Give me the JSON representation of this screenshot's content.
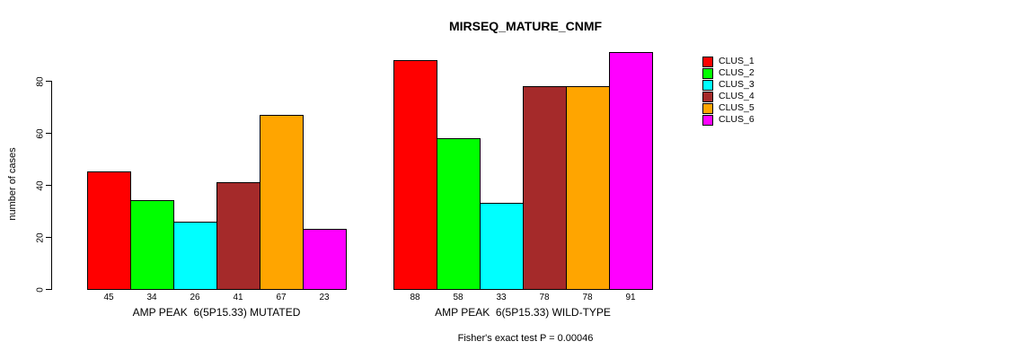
{
  "title": "MIRSEQ_MATURE_CNMF",
  "footer": "Fisher's exact test P = 0.00046",
  "chart_data": {
    "type": "bar",
    "title": "MIRSEQ_MATURE_CNMF",
    "ylabel": "number of cases",
    "xlabel": "",
    "ylim": [
      0,
      93
    ],
    "yticks": [
      0,
      20,
      40,
      60,
      80
    ],
    "grid": false,
    "legend_position": "right",
    "series_labels": [
      "CLUS_1",
      "CLUS_2",
      "CLUS_3",
      "CLUS_4",
      "CLUS_5",
      "CLUS_6"
    ],
    "colors": [
      "#FF0000",
      "#00FF00",
      "#00FFFF",
      "#A52A2A",
      "#FFA500",
      "#FF00FF"
    ],
    "groups": [
      {
        "label": "AMP PEAK  6(5P15.33) MUTATED",
        "values": [
          45,
          34,
          26,
          41,
          67,
          23
        ]
      },
      {
        "label": "AMP PEAK  6(5P15.33) WILD-TYPE",
        "values": [
          88,
          58,
          33,
          78,
          78,
          91
        ]
      }
    ],
    "annotation": "Fisher's exact test P = 0.00046"
  },
  "legend": {
    "items": [
      {
        "label": "CLUS_1",
        "color": "#FF0000"
      },
      {
        "label": "CLUS_2",
        "color": "#00FF00"
      },
      {
        "label": "CLUS_3",
        "color": "#00FFFF"
      },
      {
        "label": "CLUS_4",
        "color": "#A52A2A"
      },
      {
        "label": "CLUS_5",
        "color": "#FFA500"
      },
      {
        "label": "CLUS_6",
        "color": "#FF00FF"
      }
    ]
  }
}
